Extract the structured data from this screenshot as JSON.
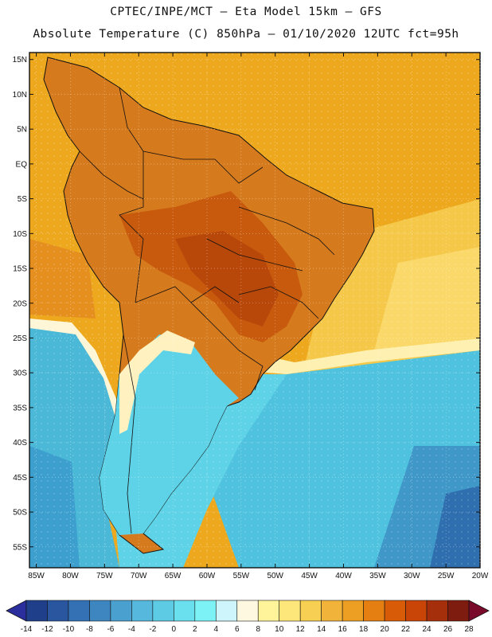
{
  "header": {
    "line1": "CPTEC/INPE/MCT –  Eta Model 15km – GFS",
    "line2": "Absolute Temperature (C) 850hPa – 01/10/2020 12UTC fct=95h"
  },
  "map": {
    "region": "South America",
    "lon_range": [
      -86,
      -20
    ],
    "lat_range": [
      -58,
      16
    ],
    "lat_ticks": [
      "15N",
      "10N",
      "5N",
      "EQ",
      "5S",
      "10S",
      "15S",
      "20S",
      "25S",
      "30S",
      "35S",
      "40S",
      "45S",
      "50S",
      "55S"
    ],
    "lon_ticks": [
      "85W",
      "80W",
      "75W",
      "70W",
      "65W",
      "60W",
      "55W",
      "50W",
      "45W",
      "40W",
      "35W",
      "30W",
      "25W",
      "20W"
    ],
    "land_fill": "#d67a1e",
    "ocean_tropical_fill": "#eda81e"
  },
  "colorbar": {
    "labels": [
      "-14",
      "-12",
      "-10",
      "-8",
      "-6",
      "-4",
      "-2",
      "0",
      "2",
      "4",
      "6",
      "8",
      "10",
      "12",
      "14",
      "16",
      "18",
      "20",
      "22",
      "24",
      "26",
      "28"
    ],
    "colors": [
      "#1f3f8a",
      "#2a56a0",
      "#3470b4",
      "#3d86c0",
      "#4aa0cf",
      "#56b8dc",
      "#5ccbe3",
      "#6ae0ee",
      "#7cf2f6",
      "#cdf5fb",
      "#fff8e0",
      "#fff49a",
      "#fde77a",
      "#f7cf52",
      "#f2b33a",
      "#ec9f23",
      "#e57f12",
      "#d85c08",
      "#c84407",
      "#a62f0b",
      "#7e1c10"
    ],
    "under_color": "#2b2f9e",
    "over_color": "#7a0a2a"
  }
}
